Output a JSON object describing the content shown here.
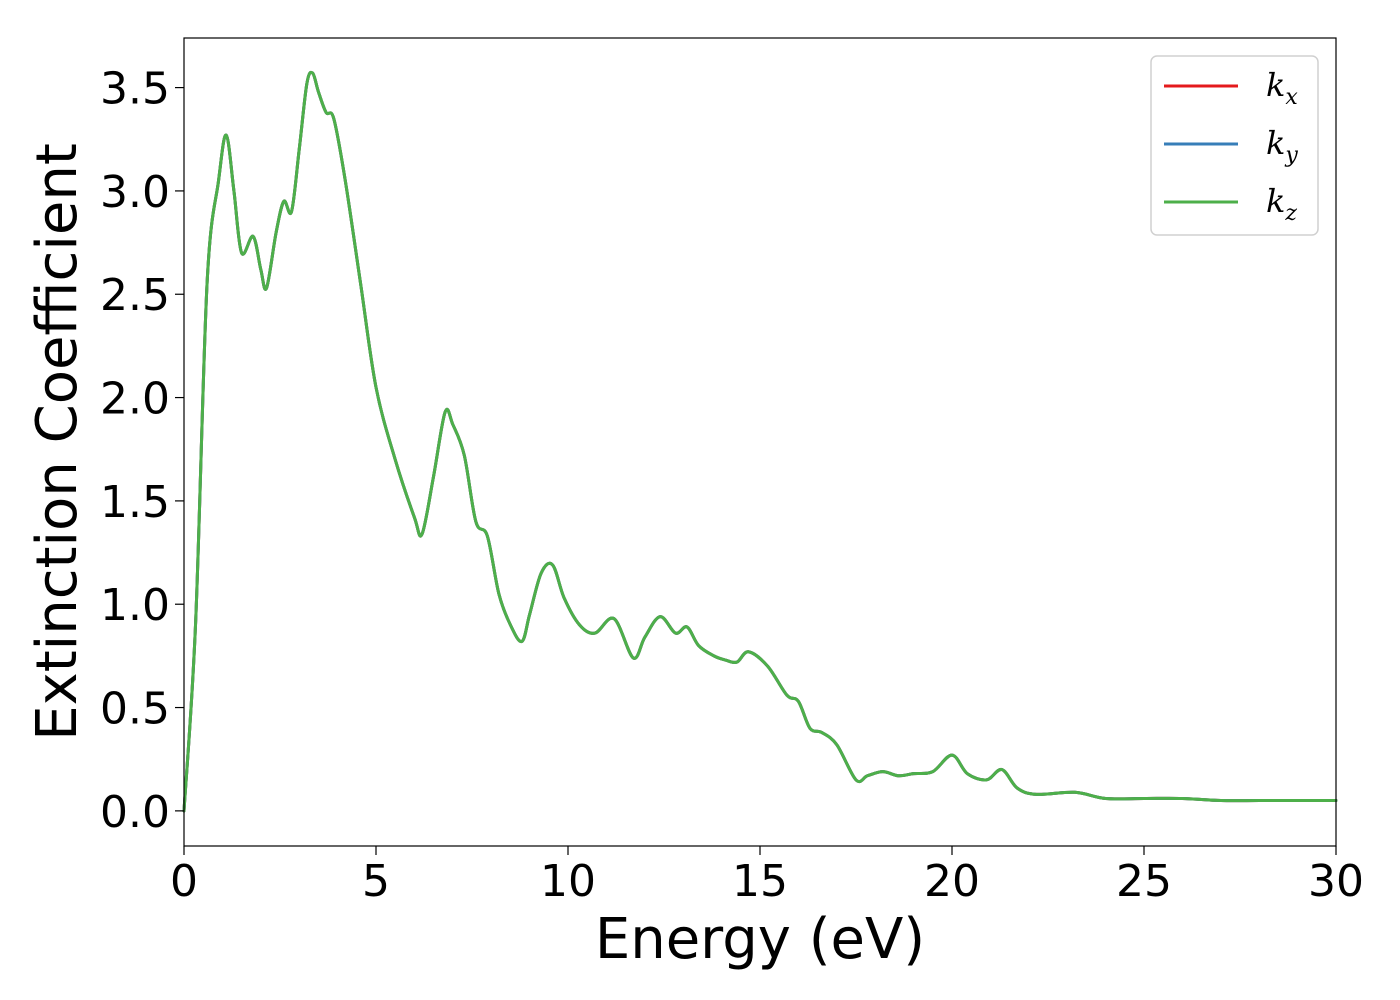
{
  "chart_data": {
    "type": "line",
    "xlabel": "Energy (eV)",
    "ylabel": "Extinction Coefficient",
    "xlim": [
      0,
      30
    ],
    "ylim": [
      -0.17,
      3.74
    ],
    "xticks": [
      0,
      5,
      10,
      15,
      20,
      25,
      30
    ],
    "xtick_labels": [
      "0",
      "5",
      "10",
      "15",
      "20",
      "25",
      "30"
    ],
    "yticks": [
      0.0,
      0.5,
      1.0,
      1.5,
      2.0,
      2.5,
      3.0,
      3.5
    ],
    "ytick_labels": [
      "0.0",
      "0.5",
      "1.0",
      "1.5",
      "2.0",
      "2.5",
      "3.0",
      "3.5"
    ],
    "grid": false,
    "legend_position": "top-right",
    "series": [
      {
        "name": "k",
        "subscript": "x",
        "color": "#e41a1c",
        "x": [
          0.0,
          0.3,
          0.6,
          0.9,
          1.1,
          1.3,
          1.5,
          1.8,
          2.0,
          2.15,
          2.4,
          2.6,
          2.8,
          3.0,
          3.2,
          3.35,
          3.5,
          3.7,
          3.9,
          4.2,
          4.6,
          5.0,
          5.5,
          6.0,
          6.2,
          6.5,
          6.8,
          7.0,
          7.3,
          7.6,
          7.9,
          8.2,
          8.5,
          8.8,
          9.0,
          9.3,
          9.6,
          9.9,
          10.3,
          10.7,
          11.2,
          11.7,
          12.0,
          12.4,
          12.8,
          13.1,
          13.4,
          13.8,
          14.1,
          14.4,
          14.7,
          15.2,
          15.7,
          16.0,
          16.3,
          16.6,
          17.0,
          17.5,
          17.8,
          18.2,
          18.6,
          19.0,
          19.5,
          20.0,
          20.4,
          20.9,
          21.3,
          21.7,
          22.2,
          23.2,
          24.0,
          25.0,
          26.0,
          27.0,
          28.0,
          29.0,
          30.0
        ],
        "values": [
          0.0,
          0.9,
          2.55,
          3.05,
          3.27,
          3.0,
          2.7,
          2.78,
          2.62,
          2.53,
          2.8,
          2.95,
          2.9,
          3.2,
          3.52,
          3.57,
          3.48,
          3.38,
          3.35,
          3.05,
          2.55,
          2.05,
          1.7,
          1.42,
          1.34,
          1.62,
          1.93,
          1.87,
          1.72,
          1.4,
          1.33,
          1.05,
          0.9,
          0.82,
          0.95,
          1.15,
          1.19,
          1.03,
          0.9,
          0.86,
          0.93,
          0.74,
          0.84,
          0.94,
          0.86,
          0.89,
          0.8,
          0.75,
          0.73,
          0.72,
          0.77,
          0.7,
          0.56,
          0.53,
          0.4,
          0.38,
          0.32,
          0.15,
          0.17,
          0.19,
          0.17,
          0.18,
          0.19,
          0.27,
          0.18,
          0.15,
          0.2,
          0.11,
          0.08,
          0.09,
          0.06,
          0.06,
          0.06,
          0.05,
          0.05,
          0.05,
          0.05
        ]
      },
      {
        "name": "k",
        "subscript": "y",
        "color": "#377eb8",
        "x": [
          0.0,
          0.3,
          0.6,
          0.9,
          1.1,
          1.3,
          1.5,
          1.8,
          2.0,
          2.15,
          2.4,
          2.6,
          2.8,
          3.0,
          3.2,
          3.35,
          3.5,
          3.7,
          3.9,
          4.2,
          4.6,
          5.0,
          5.5,
          6.0,
          6.2,
          6.5,
          6.8,
          7.0,
          7.3,
          7.6,
          7.9,
          8.2,
          8.5,
          8.8,
          9.0,
          9.3,
          9.6,
          9.9,
          10.3,
          10.7,
          11.2,
          11.7,
          12.0,
          12.4,
          12.8,
          13.1,
          13.4,
          13.8,
          14.1,
          14.4,
          14.7,
          15.2,
          15.7,
          16.0,
          16.3,
          16.6,
          17.0,
          17.5,
          17.8,
          18.2,
          18.6,
          19.0,
          19.5,
          20.0,
          20.4,
          20.9,
          21.3,
          21.7,
          22.2,
          23.2,
          24.0,
          25.0,
          26.0,
          27.0,
          28.0,
          29.0,
          30.0
        ],
        "values": [
          0.0,
          0.9,
          2.55,
          3.05,
          3.27,
          3.0,
          2.7,
          2.78,
          2.62,
          2.53,
          2.8,
          2.95,
          2.9,
          3.2,
          3.52,
          3.57,
          3.48,
          3.38,
          3.35,
          3.05,
          2.55,
          2.05,
          1.7,
          1.42,
          1.34,
          1.62,
          1.93,
          1.87,
          1.72,
          1.4,
          1.33,
          1.05,
          0.9,
          0.82,
          0.95,
          1.15,
          1.19,
          1.03,
          0.9,
          0.86,
          0.93,
          0.74,
          0.84,
          0.94,
          0.86,
          0.89,
          0.8,
          0.75,
          0.73,
          0.72,
          0.77,
          0.7,
          0.56,
          0.53,
          0.4,
          0.38,
          0.32,
          0.15,
          0.17,
          0.19,
          0.17,
          0.18,
          0.19,
          0.27,
          0.18,
          0.15,
          0.2,
          0.11,
          0.08,
          0.09,
          0.06,
          0.06,
          0.06,
          0.05,
          0.05,
          0.05,
          0.05
        ]
      },
      {
        "name": "k",
        "subscript": "z",
        "color": "#4daf4a",
        "x": [
          0.0,
          0.3,
          0.6,
          0.9,
          1.1,
          1.3,
          1.5,
          1.8,
          2.0,
          2.15,
          2.4,
          2.6,
          2.8,
          3.0,
          3.2,
          3.35,
          3.5,
          3.7,
          3.9,
          4.2,
          4.6,
          5.0,
          5.5,
          6.0,
          6.2,
          6.5,
          6.8,
          7.0,
          7.3,
          7.6,
          7.9,
          8.2,
          8.5,
          8.8,
          9.0,
          9.3,
          9.6,
          9.9,
          10.3,
          10.7,
          11.2,
          11.7,
          12.0,
          12.4,
          12.8,
          13.1,
          13.4,
          13.8,
          14.1,
          14.4,
          14.7,
          15.2,
          15.7,
          16.0,
          16.3,
          16.6,
          17.0,
          17.5,
          17.8,
          18.2,
          18.6,
          19.0,
          19.5,
          20.0,
          20.4,
          20.9,
          21.3,
          21.7,
          22.2,
          23.2,
          24.0,
          25.0,
          26.0,
          27.0,
          28.0,
          29.0,
          30.0
        ],
        "values": [
          0.0,
          0.9,
          2.55,
          3.05,
          3.27,
          3.0,
          2.7,
          2.78,
          2.62,
          2.53,
          2.8,
          2.95,
          2.9,
          3.2,
          3.52,
          3.57,
          3.48,
          3.38,
          3.35,
          3.05,
          2.55,
          2.05,
          1.7,
          1.42,
          1.34,
          1.62,
          1.93,
          1.87,
          1.72,
          1.4,
          1.33,
          1.05,
          0.9,
          0.82,
          0.95,
          1.15,
          1.19,
          1.03,
          0.9,
          0.86,
          0.93,
          0.74,
          0.84,
          0.94,
          0.86,
          0.89,
          0.8,
          0.75,
          0.73,
          0.72,
          0.77,
          0.7,
          0.56,
          0.53,
          0.4,
          0.38,
          0.32,
          0.15,
          0.17,
          0.19,
          0.17,
          0.18,
          0.19,
          0.27,
          0.18,
          0.15,
          0.2,
          0.11,
          0.08,
          0.09,
          0.06,
          0.06,
          0.06,
          0.05,
          0.05,
          0.05,
          0.05
        ]
      }
    ]
  }
}
